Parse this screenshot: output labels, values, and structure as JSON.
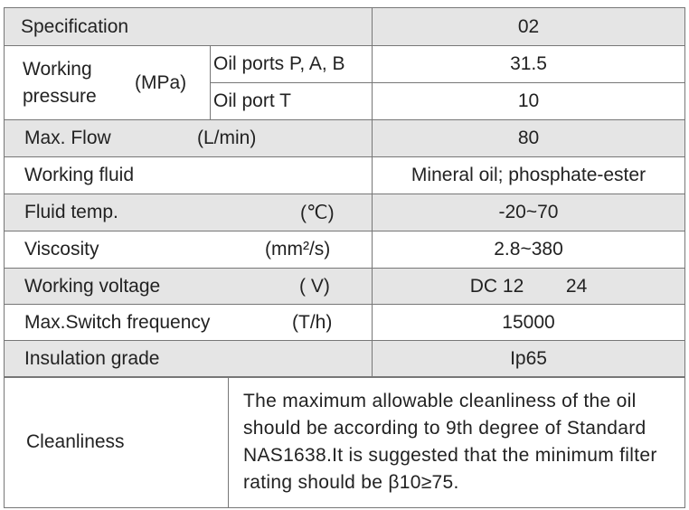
{
  "header": {
    "label": "Specification",
    "value": "02"
  },
  "pressure": {
    "label_line1": "Working",
    "label_line2": "pressure",
    "unit": "(MPa)",
    "sub": [
      {
        "label": "Oil ports P, A, B",
        "value": "31.5"
      },
      {
        "label": "Oil port  T",
        "value": "10"
      }
    ]
  },
  "rows": [
    {
      "label": "Max. Flow",
      "unit": "(L/min)",
      "value": "80"
    },
    {
      "label": "Working fluid",
      "unit": "",
      "value": "Mineral oil; phosphate-ester"
    },
    {
      "label": "Fluid temp.",
      "unit": "(℃)",
      "value": "-20~70"
    },
    {
      "label": "Viscosity",
      "unit": "(mm²/s)",
      "value": "2.8~380"
    },
    {
      "label": "Working voltage",
      "unit": "( V)",
      "value": "DC 12        24"
    },
    {
      "label": "Max.Switch frequency",
      "unit": "(T/h)",
      "value": "15000"
    },
    {
      "label": "Insulation grade",
      "unit": "",
      "value": "Ip65"
    }
  ],
  "cleanliness": {
    "label": "Cleanliness",
    "text": "The maximum allowable cleanliness of the oil should be according to 9th degree of Standard NAS1638.It is suggested that the minimum filter rating should be β10≥75."
  },
  "colors": {
    "shaded_row": "#e5e5e5",
    "border": "#777777"
  }
}
